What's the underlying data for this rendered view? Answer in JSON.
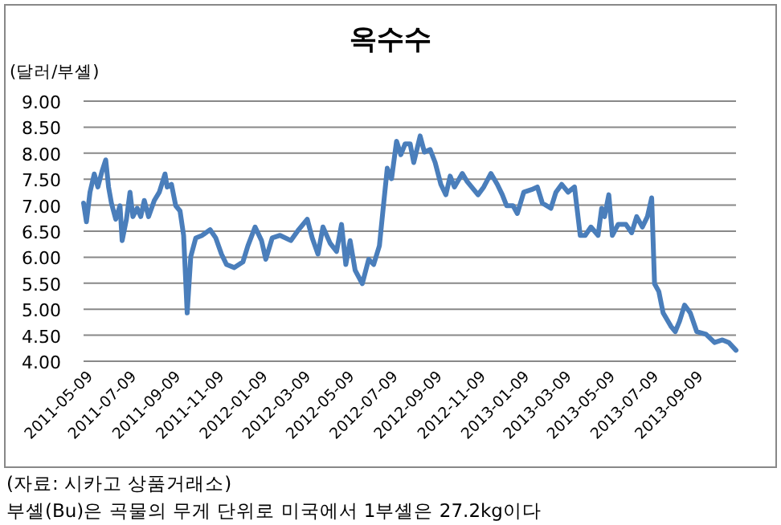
{
  "chart_data": {
    "type": "line",
    "title": "옥수수",
    "ylabel": "(달러/부셸)",
    "annotations": [
      "(자료: 시카고 상품거래소)",
      "부셸(Bu)은 곡물의 무게 단위로 미국에서 1부셸은 27.2kg이다"
    ],
    "x": [
      "2011-05-04",
      "2011-05-08",
      "2011-05-13",
      "2011-05-19",
      "2011-05-24",
      "2011-05-30",
      "2011-06-04",
      "2011-06-08",
      "2011-06-12",
      "2011-06-18",
      "2011-06-24",
      "2011-06-27",
      "2011-07-03",
      "2011-07-08",
      "2011-07-12",
      "2011-07-18",
      "2011-07-23",
      "2011-07-28",
      "2011-08-03",
      "2011-08-11",
      "2011-08-18",
      "2011-08-26",
      "2011-08-29",
      "2011-09-04",
      "2011-09-10",
      "2011-09-16",
      "2011-09-21",
      "2011-09-26",
      "2011-10-01",
      "2011-10-08",
      "2011-10-17",
      "2011-10-28",
      "2011-11-05",
      "2011-11-13",
      "2011-11-20",
      "2011-12-01",
      "2011-12-13",
      "2011-12-20",
      "2011-12-30",
      "2012-01-08",
      "2012-01-14",
      "2012-01-23",
      "2012-02-03",
      "2012-02-18",
      "2012-02-29",
      "2012-03-12",
      "2012-03-19",
      "2012-03-27",
      "2012-04-03",
      "2012-04-13",
      "2012-04-22",
      "2012-04-29",
      "2012-05-05",
      "2012-05-11",
      "2012-05-18",
      "2012-05-28",
      "2012-06-06",
      "2012-06-13",
      "2012-06-21",
      "2012-06-27",
      "2012-07-02",
      "2012-07-08",
      "2012-07-15",
      "2012-07-21",
      "2012-07-27",
      "2012-08-03",
      "2012-08-08",
      "2012-08-17",
      "2012-08-23",
      "2012-08-31",
      "2012-09-07",
      "2012-09-15",
      "2012-09-22",
      "2012-09-28",
      "2012-10-04",
      "2012-10-15",
      "2012-10-22",
      "2012-11-06",
      "2012-11-14",
      "2012-11-24",
      "2012-12-03",
      "2012-12-10",
      "2012-12-16",
      "2012-12-25",
      "2012-12-31",
      "2013-01-09",
      "2013-01-20",
      "2013-01-28",
      "2013-02-04",
      "2013-02-16",
      "2013-02-23",
      "2013-03-03",
      "2013-03-12",
      "2013-03-21",
      "2013-03-29",
      "2013-04-05",
      "2013-04-13",
      "2013-04-23",
      "2013-04-28",
      "2013-05-02",
      "2013-05-08",
      "2013-05-13",
      "2013-05-21",
      "2013-06-01",
      "2013-06-09",
      "2013-06-16",
      "2013-06-24",
      "2013-07-01",
      "2013-07-07",
      "2013-07-11",
      "2013-07-17",
      "2013-07-23",
      "2013-08-03",
      "2013-08-09",
      "2013-08-15",
      "2013-08-22",
      "2013-08-30",
      "2013-09-08",
      "2013-09-21",
      "2013-10-03",
      "2013-10-14",
      "2013-10-23",
      "2013-11-02"
    ],
    "series": [
      {
        "color": "#4a7ebb",
        "values": [
          7.04,
          6.68,
          7.25,
          7.6,
          7.35,
          7.66,
          7.87,
          7.35,
          7.04,
          6.73,
          6.99,
          6.32,
          6.73,
          7.25,
          6.78,
          6.94,
          6.78,
          7.09,
          6.78,
          7.09,
          7.25,
          7.6,
          7.35,
          7.4,
          6.99,
          6.89,
          6.42,
          4.93,
          6.01,
          6.37,
          6.42,
          6.53,
          6.37,
          6.06,
          5.86,
          5.8,
          5.91,
          6.22,
          6.58,
          6.32,
          5.96,
          6.37,
          6.42,
          6.32,
          6.53,
          6.73,
          6.37,
          6.06,
          6.58,
          6.27,
          6.11,
          6.63,
          5.86,
          6.32,
          5.75,
          5.49,
          5.96,
          5.86,
          6.22,
          7.04,
          7.71,
          7.51,
          8.23,
          7.97,
          8.18,
          8.18,
          7.82,
          8.33,
          8.02,
          8.07,
          7.82,
          7.4,
          7.2,
          7.56,
          7.35,
          7.61,
          7.45,
          7.2,
          7.35,
          7.61,
          7.4,
          7.2,
          6.99,
          6.99,
          6.84,
          7.25,
          7.3,
          7.35,
          7.04,
          6.94,
          7.25,
          7.4,
          7.25,
          7.35,
          6.42,
          6.42,
          6.58,
          6.42,
          6.94,
          6.78,
          7.2,
          6.42,
          6.63,
          6.63,
          6.47,
          6.78,
          6.58,
          6.78,
          7.14,
          5.49,
          5.34,
          4.93,
          4.67,
          4.57,
          4.77,
          5.08,
          4.93,
          4.57,
          4.52,
          4.36,
          4.41,
          4.36,
          4.21
        ]
      }
    ],
    "xlim": [
      "2011-05-04",
      "2013-11-02"
    ],
    "xticks": [
      "2011-05-09",
      "2011-07-09",
      "2011-09-09",
      "2011-11-09",
      "2012-01-09",
      "2012-03-09",
      "2012-05-09",
      "2012-07-09",
      "2012-09-09",
      "2012-11-09",
      "2013-01-09",
      "2013-03-09",
      "2013-05-09",
      "2013-07-09",
      "2013-09-09"
    ],
    "ylim": [
      4,
      9
    ],
    "yticks": [
      {
        "value": 4,
        "label": "4.00"
      },
      {
        "value": 4.5,
        "label": "4.50"
      },
      {
        "value": 5,
        "label": "5.00"
      },
      {
        "value": 5.5,
        "label": "5.50"
      },
      {
        "value": 6,
        "label": "6.00"
      },
      {
        "value": 6.5,
        "label": "6.50"
      },
      {
        "value": 7,
        "label": "7.00"
      },
      {
        "value": 7.5,
        "label": "7.50"
      },
      {
        "value": 8,
        "label": "8.00"
      },
      {
        "value": 8.5,
        "label": "8.50"
      },
      {
        "value": 9,
        "label": "9.00"
      }
    ],
    "grid": "y",
    "line_style": "solid"
  }
}
